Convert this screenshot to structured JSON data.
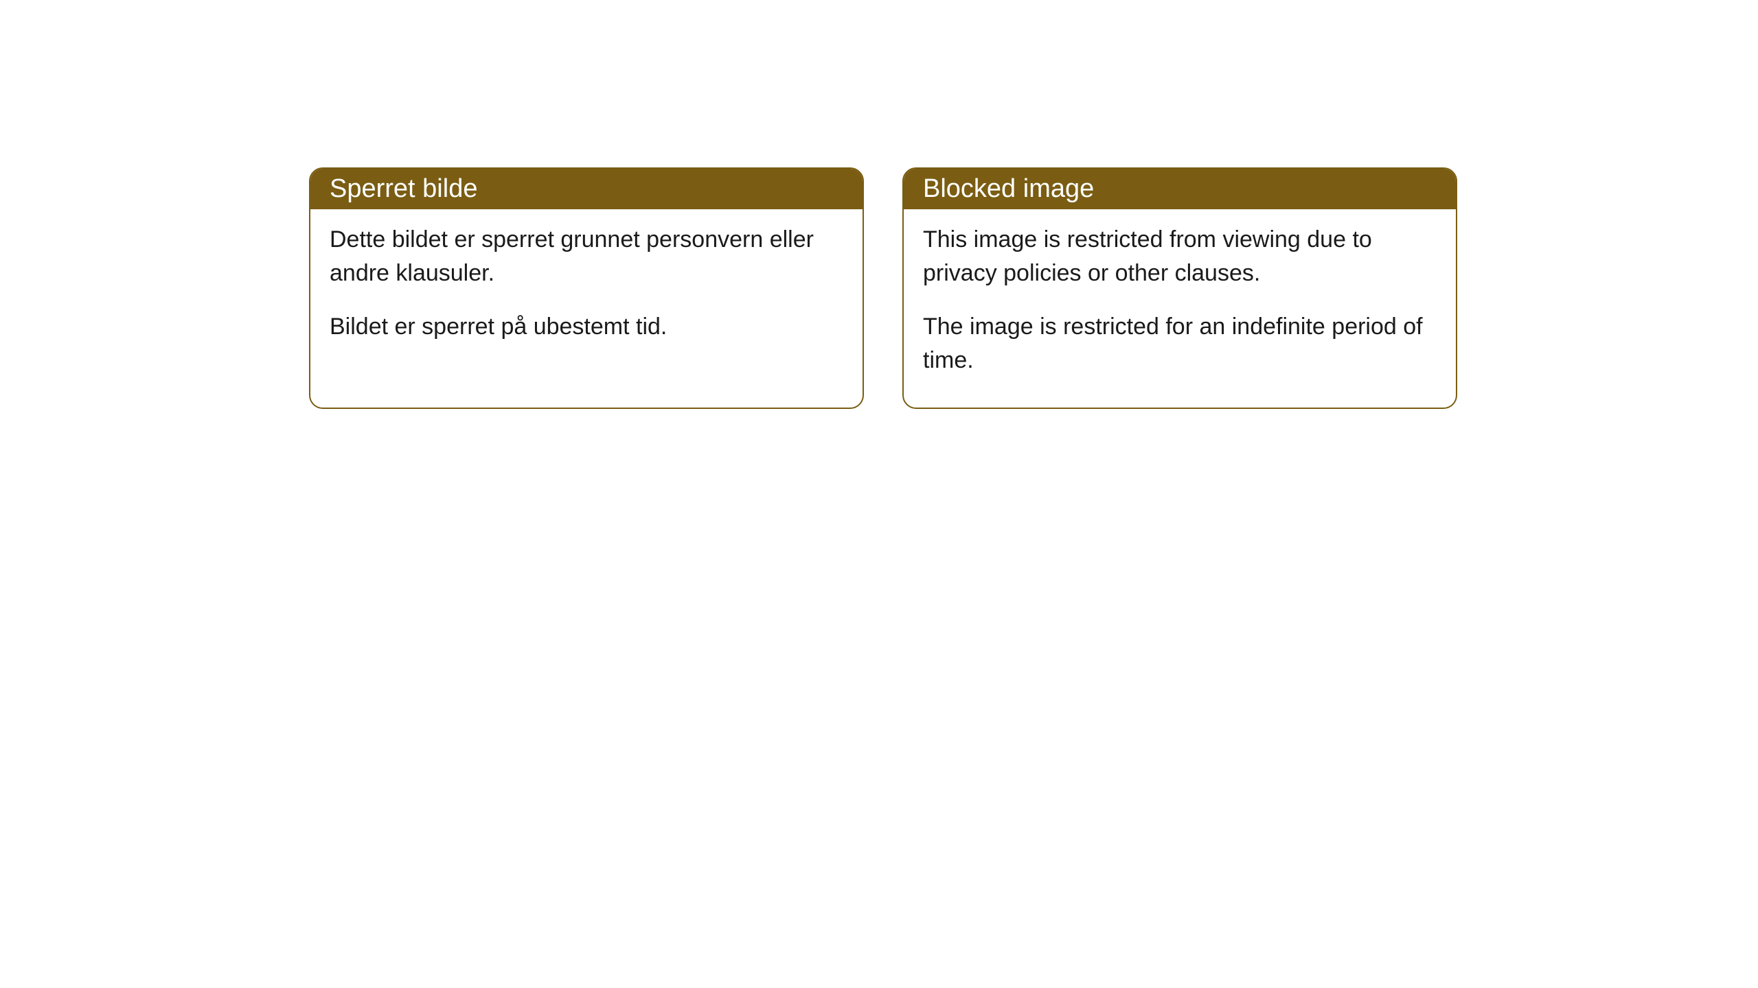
{
  "cards": [
    {
      "title": "Sperret bilde",
      "paragraph1": "Dette bildet er sperret grunnet personvern eller andre klausuler.",
      "paragraph2": "Bildet er sperret på ubestemt tid."
    },
    {
      "title": "Blocked image",
      "paragraph1": "This image is restricted from viewing due to privacy policies or other clauses.",
      "paragraph2": "The image is restricted for an indefinite period of time."
    }
  ],
  "style": {
    "header_bg": "#7a5d13",
    "header_text_color": "#ffffff",
    "border_color": "#7a5d13",
    "body_bg": "#ffffff",
    "body_text_color": "#1a1a1a",
    "border_radius": 20,
    "header_fontsize": 38,
    "body_fontsize": 34
  }
}
